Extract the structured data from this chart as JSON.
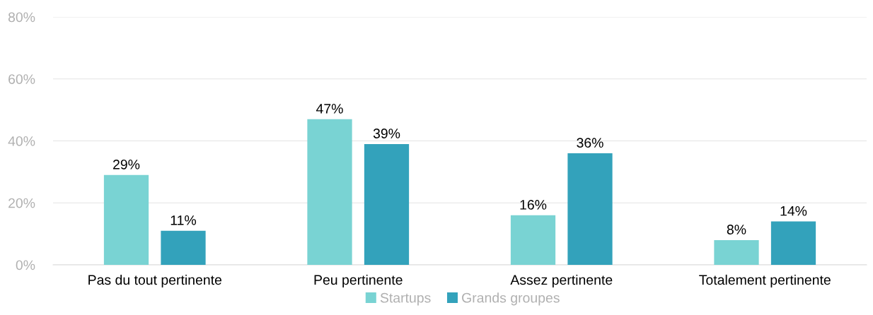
{
  "chart_data": {
    "type": "bar",
    "categories": [
      "Pas du tout pertinente",
      "Peu pertinente",
      "Assez pertinente",
      "Totalement pertinente"
    ],
    "series": [
      {
        "name": "Startups",
        "color": "#79d3d3",
        "values": [
          29,
          47,
          16,
          8
        ],
        "value_labels": [
          "29%",
          "47%",
          "16%",
          "8%"
        ]
      },
      {
        "name": "Grands groupes",
        "color": "#33a2bb",
        "values": [
          11,
          39,
          36,
          14
        ],
        "value_labels": [
          "11%",
          "39%",
          "36%",
          "14%"
        ]
      }
    ],
    "ylim": [
      0,
      80
    ],
    "yticks": [
      {
        "value": 0,
        "label": "0%"
      },
      {
        "value": 20,
        "label": "20%"
      },
      {
        "value": 40,
        "label": "40%"
      },
      {
        "value": 60,
        "label": "60%"
      },
      {
        "value": 80,
        "label": "80%"
      }
    ],
    "grid": "y",
    "legend": "bottom"
  }
}
